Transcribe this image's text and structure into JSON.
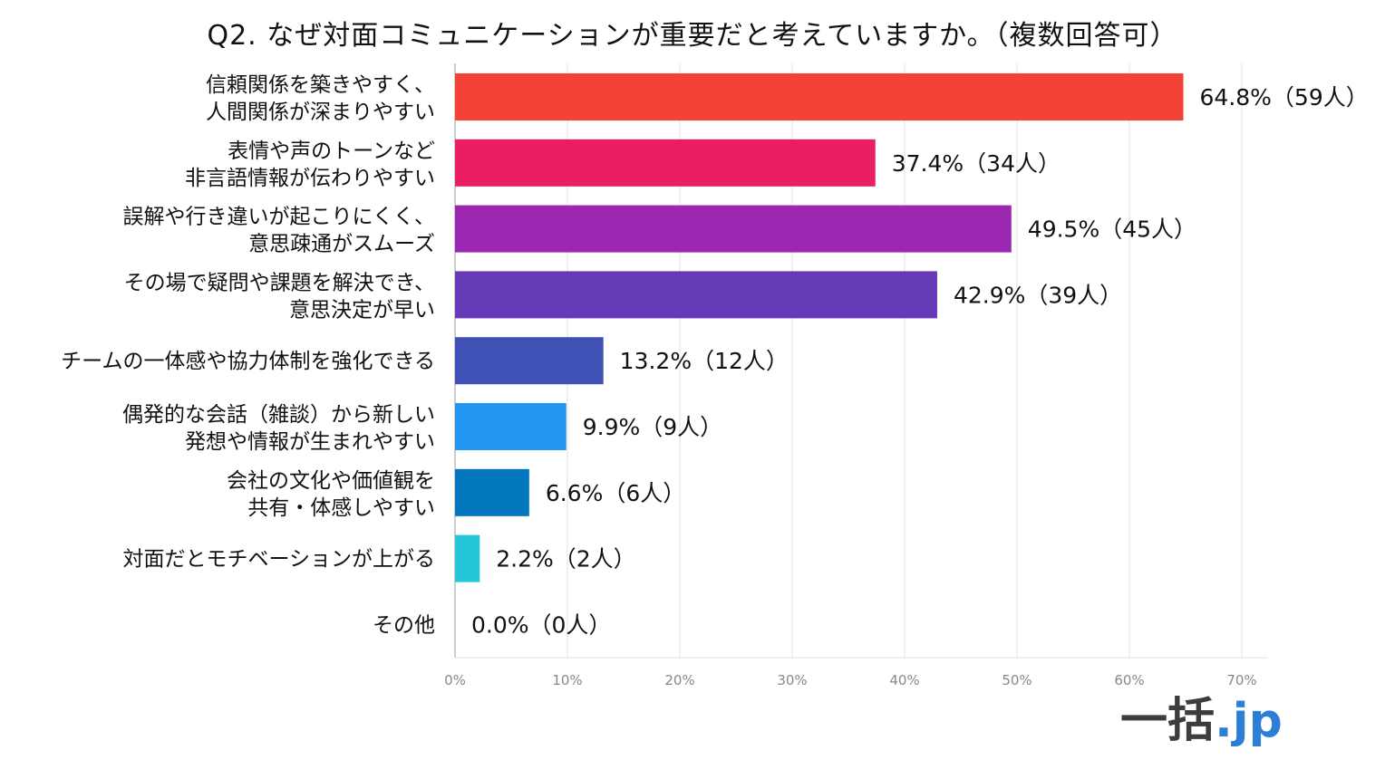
{
  "title": "Q2.  なぜ対面コミュニケーションが重要だと考えていますか。（複数回答可）",
  "logo": {
    "main": "一括",
    "tld": ".jp"
  },
  "chart_data": {
    "type": "bar",
    "orientation": "horizontal",
    "title": "Q2.  なぜ対面コミュニケーションが重要だと考えていますか。（複数回答可）",
    "xlim": [
      0,
      70
    ],
    "x_ticks": [
      "0%",
      "10%",
      "20%",
      "30%",
      "40%",
      "50%",
      "60%",
      "70%"
    ],
    "grid": true,
    "categories": [
      [
        "信頼関係を築きやすく、",
        "人間関係が深まりやすい"
      ],
      [
        "表情や声のトーンなど",
        "非言語情報が伝わりやすい"
      ],
      [
        "誤解や行き違いが起こりにくく、",
        "意思疎通がスムーズ"
      ],
      [
        "その場で疑問や課題を解決でき、",
        "意思決定が早い"
      ],
      [
        "チームの一体感や協力体制を強化できる"
      ],
      [
        "偶発的な会話（雑談）から新しい",
        "発想や情報が生まれやすい"
      ],
      [
        "会社の文化や価値観を",
        "共有・体感しやすい"
      ],
      [
        "対面だとモチベーションが上がる"
      ],
      [
        "その他"
      ]
    ],
    "values": [
      64.8,
      37.4,
      49.5,
      42.9,
      13.2,
      9.9,
      6.6,
      2.2,
      0.0
    ],
    "data_labels": [
      "64.8%（59人）",
      "37.4%（34人）",
      "49.5%（45人）",
      "42.9%（39人）",
      "13.2%（12人）",
      "9.9%（9人）",
      "6.6%（6人）",
      "2.2%（2人）",
      "0.0%（0人）"
    ],
    "colors": [
      "#f44336",
      "#e91e63",
      "#9c27b0",
      "#673ab7",
      "#3f51b5",
      "#2196f3",
      "#0277bd",
      "#26c6da",
      "#26a69a"
    ]
  }
}
